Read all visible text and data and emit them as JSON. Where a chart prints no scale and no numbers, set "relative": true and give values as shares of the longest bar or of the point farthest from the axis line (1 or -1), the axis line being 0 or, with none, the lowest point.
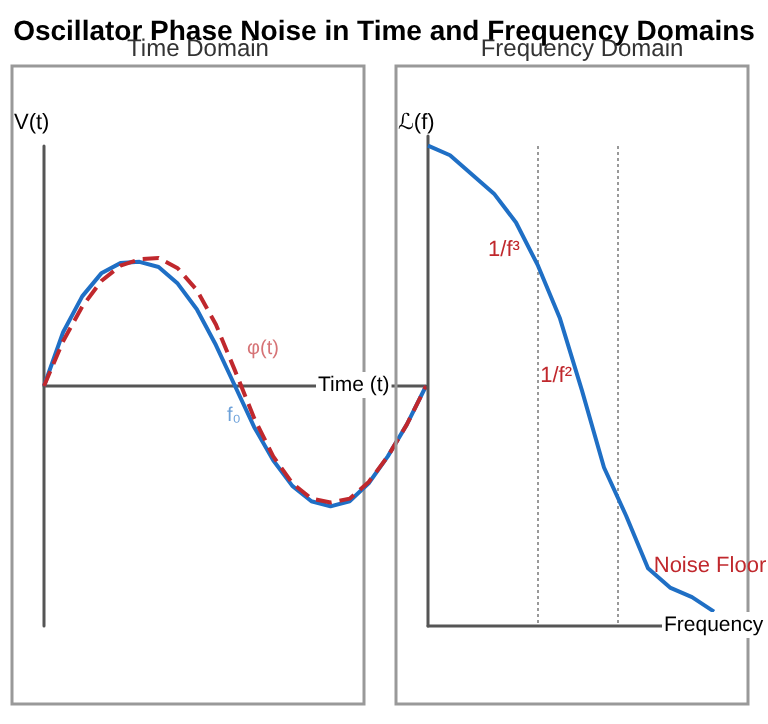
{
  "chart_data": [
    {
      "type": "line",
      "title": "Oscillator Phase Noise in Time and Frequency Domains",
      "subtitle": "Time Domain",
      "xlabel": "Time (t)",
      "ylabel": "V(t)",
      "relative": true,
      "grid": false,
      "legend": false,
      "marker": "none",
      "categories": [
        null,
        null,
        null,
        null,
        null,
        null,
        null,
        null,
        null,
        null,
        null,
        null,
        null,
        null,
        null,
        null,
        null,
        null,
        null,
        null,
        null
      ],
      "series": [
        {
          "name": "f₀",
          "color": "#1f6fc5",
          "line_style": "solid",
          "values": [
            0,
            0.42,
            0.7,
            0.88,
            0.96,
            0.97,
            0.93,
            0.8,
            0.6,
            0.32,
            0,
            -0.32,
            -0.58,
            -0.78,
            -0.9,
            -0.94,
            -0.9,
            -0.76,
            -0.55,
            -0.3,
            0
          ]
        },
        {
          "name": "φ(t)",
          "color": "#c0282d",
          "line_style": "dashed",
          "values": [
            0,
            0.35,
            0.62,
            0.82,
            0.94,
            0.99,
            1.0,
            0.92,
            0.75,
            0.48,
            0.12,
            -0.25,
            -0.55,
            -0.76,
            -0.88,
            -0.91,
            -0.88,
            -0.75,
            -0.55,
            -0.3,
            0
          ]
        }
      ]
    },
    {
      "type": "line",
      "title": "Frequency Domain",
      "xlabel": "Frequency",
      "ylabel": "ℒ(f)",
      "relative": true,
      "grid": false,
      "legend": false,
      "marker": "none",
      "categories": [
        null,
        null,
        null,
        null,
        null,
        null,
        null,
        null,
        null,
        null,
        null,
        null,
        null,
        null
      ],
      "series": [
        {
          "color": "#1f6fc5",
          "values": [
            1,
            0.98,
            0.94,
            0.9,
            0.84,
            0.75,
            0.64,
            0.49,
            0.33,
            0.23,
            0.12,
            0.08,
            0.06,
            0.03
          ]
        }
      ],
      "annotations": [
        "1/f³",
        "1/f²",
        "Noise Floor"
      ]
    }
  ]
}
